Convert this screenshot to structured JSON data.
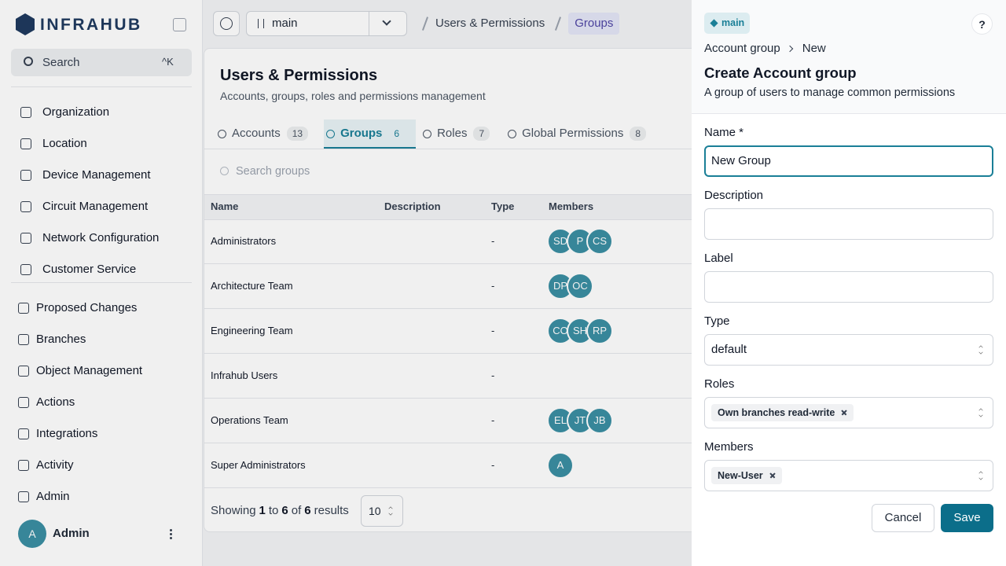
{
  "sidebar": {
    "brand": "INFRAHUB",
    "search": "Search",
    "shortcut": "^K",
    "primary_nav": [
      "Organization",
      "Location",
      "Device Management",
      "Circuit Management",
      "Network Configuration",
      "Customer Service"
    ],
    "secondary_nav": [
      "Proposed Changes",
      "Branches",
      "Object Management",
      "Actions",
      "Integrations",
      "Activity",
      "Admin"
    ],
    "user": {
      "initial": "A",
      "name": "Admin"
    }
  },
  "topbar": {
    "branch": "main",
    "breadcrumb": [
      "Users & Permissions",
      "Groups"
    ]
  },
  "page": {
    "title": "Users & Permissions",
    "subtitle": "Accounts, groups, roles and permissions management",
    "tabs": [
      {
        "label": "Accounts",
        "count": 13
      },
      {
        "label": "Groups",
        "count": 6
      },
      {
        "label": "Roles",
        "count": 7
      },
      {
        "label": "Global Permissions",
        "count": 8
      }
    ],
    "search_placeholder": "Search groups",
    "table": {
      "columns": [
        "Name",
        "Description",
        "Type",
        "Members"
      ],
      "rows": [
        {
          "name": "Administrators",
          "type": "-",
          "members": [
            "SD",
            "P",
            "CS"
          ]
        },
        {
          "name": "Architecture Team",
          "type": "-",
          "members": [
            "DP",
            "OC"
          ]
        },
        {
          "name": "Engineering Team",
          "type": "-",
          "members": [
            "CO",
            "SH",
            "RP"
          ]
        },
        {
          "name": "Infrahub Users",
          "type": "-",
          "members": []
        },
        {
          "name": "Operations Team",
          "type": "-",
          "members": [
            "EL",
            "JT",
            "JB"
          ]
        },
        {
          "name": "Super Administrators",
          "type": "-",
          "members": [
            "A"
          ]
        }
      ]
    },
    "pagination": {
      "text": [
        "Showing",
        "1",
        "to",
        "6",
        "of",
        "6",
        "results"
      ],
      "page_size": 10
    }
  },
  "panel": {
    "branch": "main",
    "help": "?",
    "breadcrumb": [
      "Account group",
      "New"
    ],
    "title": "Create Account group",
    "subtitle": "A group of users to manage common permissions",
    "fields": [
      {
        "label": "Name *",
        "value": "New Group"
      },
      {
        "label": "Description"
      },
      {
        "label": "Label"
      },
      {
        "label": "Type",
        "value": "default"
      },
      {
        "label": "Roles",
        "tags": [
          "Own branches read-write"
        ]
      },
      {
        "label": "Members",
        "tags": [
          "New-User"
        ]
      }
    ],
    "cancel": "Cancel",
    "save": "Save"
  }
}
